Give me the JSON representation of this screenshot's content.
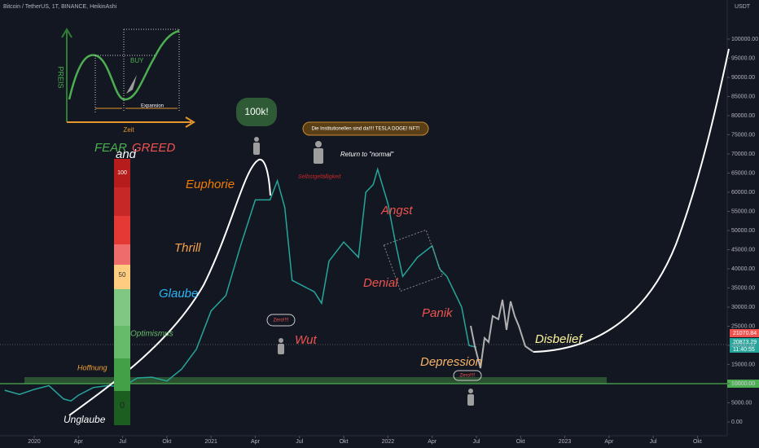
{
  "header": "Bitcoin / TetherUS, 1T, BINANCE, HeikinAshi",
  "axis_unit": "USDT",
  "price_tags": [
    "21070.84",
    "20873.29",
    "11:40:55",
    "10000.00"
  ],
  "inset": {
    "y_label": "PREIS",
    "buy": "BUY",
    "expansion": "Expansion",
    "x_label": "Zeit"
  },
  "fear_greed": {
    "fear": "FEAR",
    "and": "and",
    "greed": "GREED",
    "levels": [
      "100",
      "50",
      "0"
    ]
  },
  "annotations": {
    "bubble": "100k!",
    "institutions": "Die Institutionellen sind da!!!! TESLA DOGE! NFT!",
    "return": "Return to \"normal\"",
    "complacency": "Selbstgefälligkeit",
    "euphoria": "Euphorie",
    "thrill": "Thrill",
    "belief": "Glaube",
    "optimism": "Optimismus",
    "hope": "Hoffnung",
    "disbelief_start": "Unglaube",
    "anger": "Wut",
    "zero1": "Zero!!!!",
    "fear": "Angst",
    "denial": "Denial",
    "panic": "Panik",
    "depression": "Depression",
    "zero2": "Zero!!!!",
    "disbelief": "Disbelief"
  },
  "chart_data": {
    "type": "line",
    "color": "#26a69a",
    "grid": false,
    "x": [
      -2,
      -1,
      0,
      1,
      2,
      2.5,
      3,
      4,
      5,
      6,
      7,
      8,
      9,
      10,
      11,
      12,
      13,
      14,
      15,
      16,
      16.5,
      17,
      17.5,
      18,
      19,
      19.5,
      20,
      21,
      22,
      22.5,
      23,
      23.3,
      24,
      24.5,
      25,
      26,
      27,
      27.5,
      28,
      29,
      29.5,
      30
    ],
    "values": [
      8300,
      7200,
      8500,
      9500,
      6000,
      5500,
      7000,
      9000,
      9500,
      9200,
      11500,
      11700,
      10700,
      13800,
      19000,
      29000,
      33000,
      46000,
      58000,
      58000,
      63000,
      56000,
      37000,
      36000,
      34000,
      31000,
      42000,
      47000,
      43000,
      60000,
      62000,
      66000,
      57000,
      47000,
      38000,
      43000,
      46000,
      40000,
      38000,
      30000,
      20000,
      19500
    ],
    "xlim": [
      -2.32,
      47.02
    ],
    "xticks": [
      {
        "value": 0,
        "label": "2020"
      },
      {
        "value": 3,
        "label": "Apr"
      },
      {
        "value": 6,
        "label": "Jul"
      },
      {
        "value": 9,
        "label": "Okt"
      },
      {
        "value": 12,
        "label": "2021"
      },
      {
        "value": 15,
        "label": "Apr"
      },
      {
        "value": 18,
        "label": "Jul"
      },
      {
        "value": 21,
        "label": "Okt"
      },
      {
        "value": 24,
        "label": "2022"
      },
      {
        "value": 27,
        "label": "Apr"
      },
      {
        "value": 30,
        "label": "Jul"
      },
      {
        "value": 33,
        "label": "Okt"
      },
      {
        "value": 36,
        "label": "2023"
      },
      {
        "value": 39,
        "label": "Apr"
      },
      {
        "value": 42,
        "label": "Jul"
      },
      {
        "value": 45,
        "label": "Okt"
      }
    ],
    "ylim": [
      -3600,
      110200
    ],
    "yticks": [
      {
        "value": 0,
        "label": "0.00"
      },
      {
        "value": 5000,
        "label": "5000.00"
      },
      {
        "value": 10000,
        "label": "10000.00"
      },
      {
        "value": 15000,
        "label": "15000.00"
      },
      {
        "value": 20000,
        "label": "20000.00"
      },
      {
        "value": 25000,
        "label": "25000.00"
      },
      {
        "value": 30000,
        "label": "30000.00"
      },
      {
        "value": 35000,
        "label": "35000.00"
      },
      {
        "value": 40000,
        "label": "40000.00"
      },
      {
        "value": 45000,
        "label": "45000.00"
      },
      {
        "value": 50000,
        "label": "50000.00"
      },
      {
        "value": 55000,
        "label": "55000.00"
      },
      {
        "value": 60000,
        "label": "60000.00"
      },
      {
        "value": 65000,
        "label": "65000.00"
      },
      {
        "value": 70000,
        "label": "70000.00"
      },
      {
        "value": 75000,
        "label": "75000.00"
      },
      {
        "value": 80000,
        "label": "80000.00"
      },
      {
        "value": 85000,
        "label": "85000.00"
      },
      {
        "value": 90000,
        "label": "90000.00"
      },
      {
        "value": 95000,
        "label": "95000.00"
      },
      {
        "value": 100000,
        "label": "100000.00"
      }
    ]
  }
}
